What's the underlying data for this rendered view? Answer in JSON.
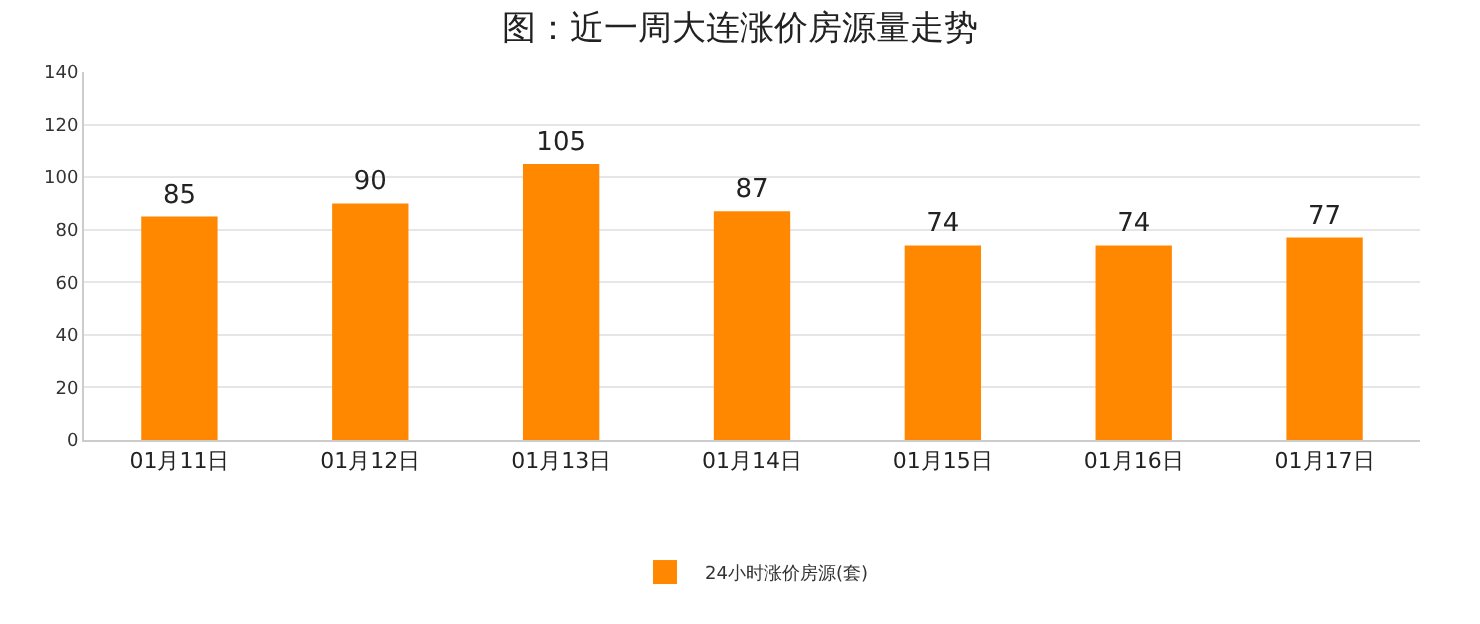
{
  "chart_data": {
    "type": "bar",
    "title": "图：近一周大连涨价房源量走势",
    "categories": [
      "01月11日",
      "01月12日",
      "01月13日",
      "01月14日",
      "01月15日",
      "01月16日",
      "01月17日"
    ],
    "series": [
      {
        "name": "24小时涨价房源(套)",
        "color": "#ff8800",
        "values": [
          85,
          90,
          105,
          87,
          74,
          74,
          77
        ]
      }
    ],
    "ylim": [
      0,
      140
    ],
    "yticks": [
      0,
      20,
      40,
      60,
      80,
      100,
      120,
      140
    ],
    "grid": "y",
    "legend": "bottom",
    "data_labels": true
  }
}
